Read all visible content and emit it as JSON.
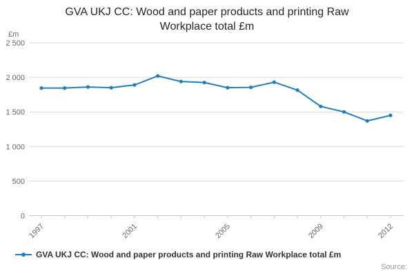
{
  "title": "GVA UKJ CC: Wood and paper products and printing Raw Workplace total £m",
  "legend_label": "GVA UKJ CC: Wood and paper products and printing Raw Workplace total £m",
  "source_label": "Source:",
  "chart_data": {
    "type": "line",
    "title": "GVA UKJ CC: Wood and paper products and printing Raw Workplace total £m",
    "unit_label": "£m",
    "x": [
      1997,
      1998,
      1999,
      2000,
      2001,
      2002,
      2003,
      2004,
      2005,
      2006,
      2007,
      2008,
      2009,
      2010,
      2011,
      2012
    ],
    "series": [
      {
        "name": "GVA UKJ CC: Wood and paper products and printing Raw Workplace total £m",
        "values": [
          1845,
          1845,
          1860,
          1850,
          1890,
          2020,
          1940,
          1925,
          1850,
          1855,
          1930,
          1815,
          1580,
          1500,
          1370,
          1450
        ]
      }
    ],
    "ylim": [
      0,
      2500
    ],
    "yticks": [
      0,
      500,
      1000,
      1500,
      2000,
      2500
    ],
    "ytick_labels": [
      "0",
      "500",
      "1 000",
      "1 500",
      "2 000",
      "2 500"
    ],
    "xtick_years": [
      1997,
      2001,
      2005,
      2009,
      2012
    ],
    "legend_position": "bottom-left",
    "grid": true,
    "line_color": "#1e7ebd",
    "grid_color": "#d9d9d9",
    "axis_color": "#c6c6c6",
    "tick_label_color": "#666666"
  }
}
